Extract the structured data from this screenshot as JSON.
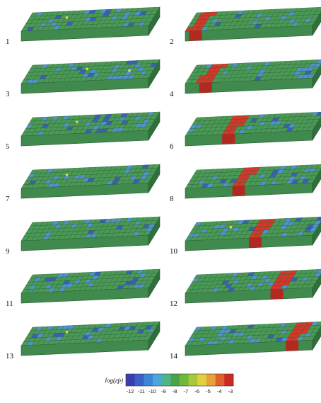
{
  "figure": {
    "panel_count": 14,
    "panels": [
      {
        "label": "1",
        "band_position": null,
        "yellow_specks": 1
      },
      {
        "label": "2",
        "band_position": 0.08,
        "yellow_specks": 0
      },
      {
        "label": "3",
        "band_position": null,
        "yellow_specks": 2
      },
      {
        "label": "4",
        "band_position": 0.16,
        "yellow_specks": 0
      },
      {
        "label": "5",
        "band_position": null,
        "yellow_specks": 1
      },
      {
        "label": "6",
        "band_position": 0.34,
        "yellow_specks": 0
      },
      {
        "label": "7",
        "band_position": null,
        "yellow_specks": 1
      },
      {
        "label": "8",
        "band_position": 0.42,
        "yellow_specks": 0
      },
      {
        "label": "9",
        "band_position": null,
        "yellow_specks": 0
      },
      {
        "label": "10",
        "band_position": 0.55,
        "yellow_specks": 1
      },
      {
        "label": "11",
        "band_position": null,
        "yellow_specks": 0
      },
      {
        "label": "12",
        "band_position": 0.72,
        "yellow_specks": 0
      },
      {
        "label": "13",
        "band_position": null,
        "yellow_specks": 1
      },
      {
        "label": "14",
        "band_position": 0.84,
        "yellow_specks": 0
      }
    ],
    "colorbar": {
      "title": "log(ε̇p)",
      "ticks": [
        "-12",
        "-11",
        "-10",
        "-9",
        "-8",
        "-7",
        "-6",
        "-5",
        "-4",
        "-3"
      ],
      "colors": [
        "#3a3fb0",
        "#3b60c8",
        "#3d86d8",
        "#4aa8d8",
        "#4fb48a",
        "#4aa34a",
        "#6fb83c",
        "#a8c83a",
        "#e0d040",
        "#e8a038",
        "#e06030",
        "#cc2a22"
      ]
    },
    "palette": {
      "background": "#ffffff",
      "slab_top": "#4a9a56",
      "slab_front": "#3f8a4c",
      "slab_side": "#2f6f3b",
      "blue_patch": "#4f93c8",
      "dark_blue_patch": "#3a5fb8",
      "grid_line": "#2a5a34",
      "band_red": "#d8362a",
      "band_dark_red": "#b02a22",
      "speck_yellow": "#e6d64a"
    }
  }
}
